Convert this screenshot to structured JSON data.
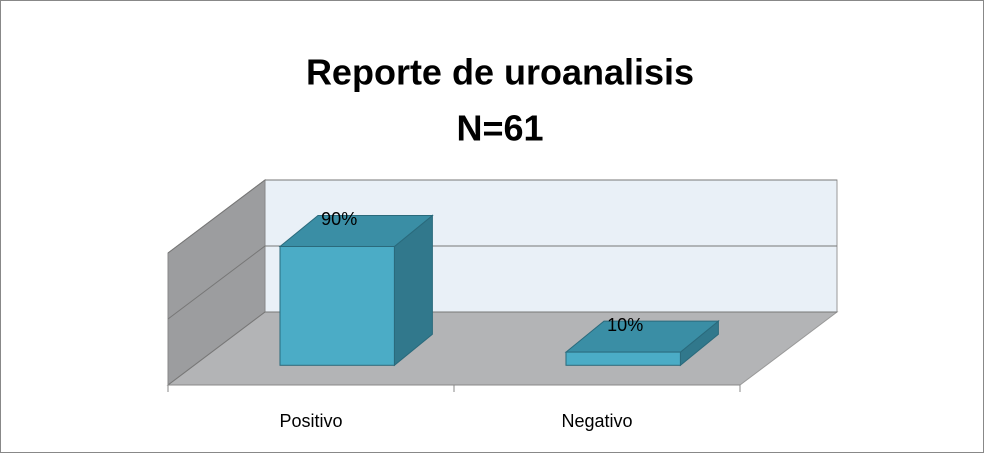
{
  "chart_data": {
    "type": "bar3d",
    "title": "Reporte de uroanalisis",
    "subtitle": "N=61",
    "categories": [
      "Positivo",
      "Negativo"
    ],
    "values": [
      90,
      10
    ],
    "value_labels": [
      "90%",
      "10%"
    ],
    "color": "#4bacc6",
    "ylim": [
      0,
      100
    ],
    "yticks": [
      0,
      50,
      100
    ],
    "grid": true
  }
}
